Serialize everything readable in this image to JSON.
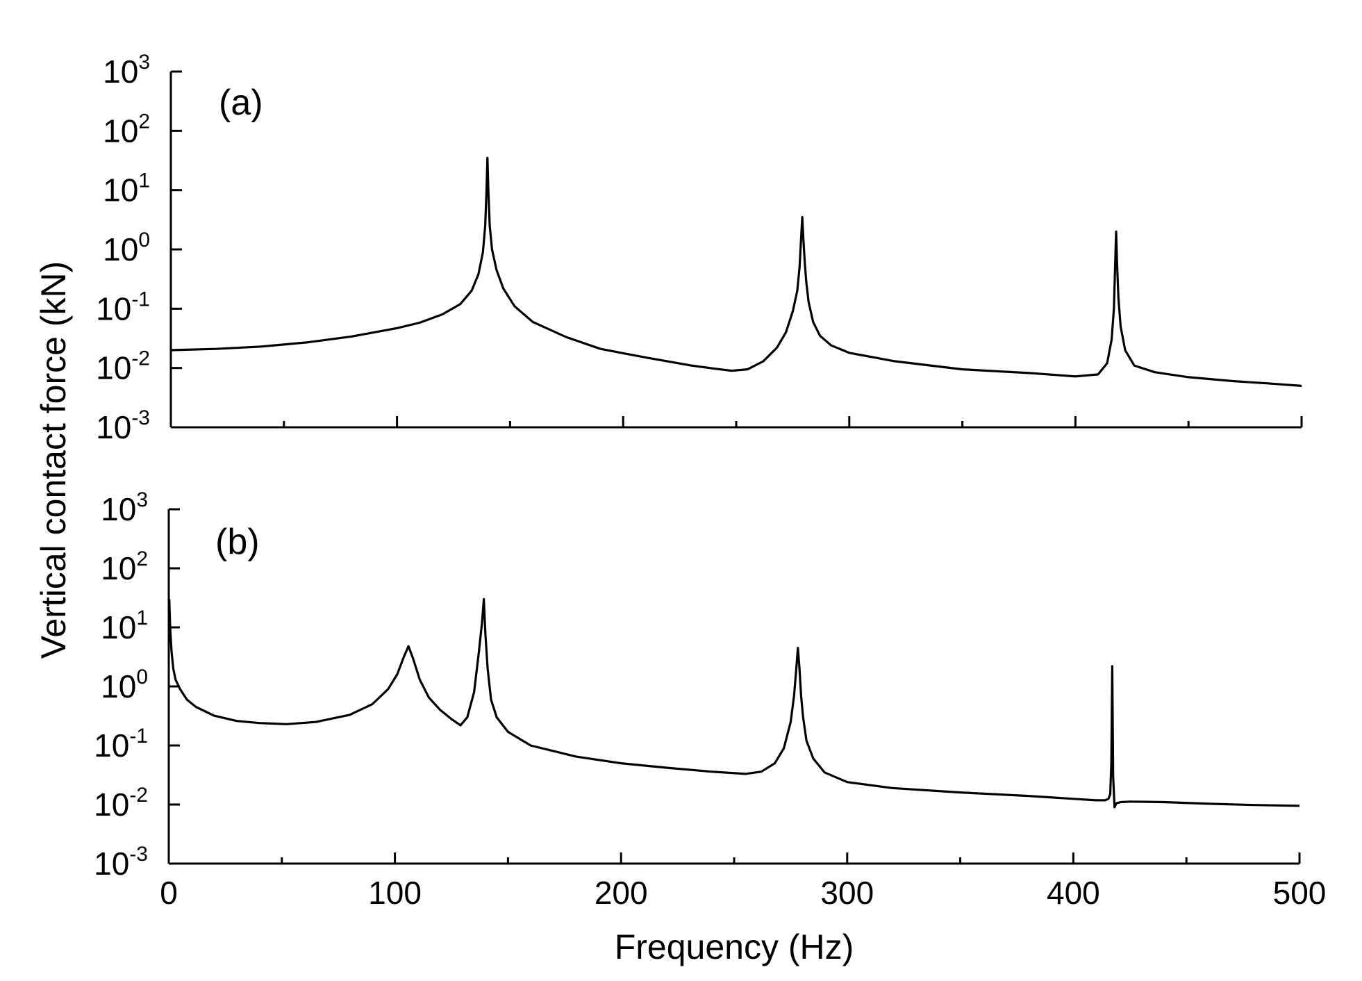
{
  "chart_data": [
    {
      "type": "line",
      "panel_label": "(a)",
      "xlim": [
        0,
        500
      ],
      "ylim": [
        0.001,
        1000
      ],
      "y_scale": "log",
      "grid": false,
      "legend": "none",
      "x_ticks": [
        0,
        100,
        200,
        300,
        400,
        500
      ],
      "x_tick_labels_shown": false,
      "y_ticks": [
        {
          "base": "10",
          "exp": "3",
          "value": 1000
        },
        {
          "base": "10",
          "exp": "2",
          "value": 100
        },
        {
          "base": "10",
          "exp": "1",
          "value": 10
        },
        {
          "base": "10",
          "exp": "0",
          "value": 1
        },
        {
          "base": "10",
          "exp": "-1",
          "value": 0.1
        },
        {
          "base": "10",
          "exp": "-2",
          "value": 0.01
        },
        {
          "base": "10",
          "exp": "-3",
          "value": 0.001
        }
      ],
      "series": [
        {
          "color": "#000000",
          "x": [
            0,
            20,
            40,
            60,
            80,
            100,
            110,
            120,
            128,
            133,
            136,
            138,
            139,
            139.6,
            140,
            140.4,
            141,
            142,
            144,
            147,
            152,
            160,
            175,
            190,
            210,
            230,
            240,
            248,
            255,
            262,
            268,
            272,
            275,
            277,
            278,
            278.7,
            279.2,
            279.7,
            280.3,
            281,
            282,
            284,
            287,
            292,
            300,
            320,
            350,
            380,
            400,
            410,
            414,
            416,
            417,
            417.6,
            418,
            418.4,
            419,
            420,
            422,
            426,
            435,
            450,
            470,
            485,
            500
          ],
          "y": [
            0.02,
            0.021,
            0.023,
            0.027,
            0.034,
            0.047,
            0.058,
            0.08,
            0.12,
            0.2,
            0.38,
            0.9,
            2.5,
            10,
            35,
            10,
            2.5,
            1.0,
            0.45,
            0.22,
            0.11,
            0.06,
            0.033,
            0.021,
            0.015,
            0.011,
            0.0098,
            0.009,
            0.0095,
            0.013,
            0.022,
            0.04,
            0.09,
            0.2,
            0.5,
            1.5,
            3.5,
            1.5,
            0.6,
            0.28,
            0.13,
            0.06,
            0.035,
            0.024,
            0.018,
            0.013,
            0.0095,
            0.0082,
            0.0072,
            0.0078,
            0.012,
            0.03,
            0.1,
            0.6,
            2.0,
            0.6,
            0.15,
            0.05,
            0.02,
            0.011,
            0.0085,
            0.007,
            0.006,
            0.0055,
            0.005
          ]
        }
      ]
    },
    {
      "type": "line",
      "panel_label": "(b)",
      "xlim": [
        0,
        500
      ],
      "ylim": [
        0.001,
        1000
      ],
      "y_scale": "log",
      "grid": false,
      "legend": "none",
      "xlabel": "Frequency (Hz)",
      "x_ticks": [
        0,
        100,
        200,
        300,
        400,
        500
      ],
      "x_tick_labels": [
        "0",
        "100",
        "200",
        "300",
        "400",
        "500"
      ],
      "y_ticks": [
        {
          "base": "10",
          "exp": "3",
          "value": 1000
        },
        {
          "base": "10",
          "exp": "2",
          "value": 100
        },
        {
          "base": "10",
          "exp": "1",
          "value": 10
        },
        {
          "base": "10",
          "exp": "0",
          "value": 1
        },
        {
          "base": "10",
          "exp": "-1",
          "value": 0.1
        },
        {
          "base": "10",
          "exp": "-2",
          "value": 0.01
        },
        {
          "base": "10",
          "exp": "-3",
          "value": 0.001
        }
      ],
      "series": [
        {
          "color": "#000000",
          "x": [
            0.2,
            0.6,
            1.2,
            2,
            3,
            5,
            8,
            12,
            20,
            30,
            40,
            52,
            65,
            80,
            90,
            97,
            101,
            104,
            106,
            108,
            111,
            115,
            120,
            125,
            129,
            132,
            135,
            137,
            138.5,
            139.3,
            140,
            141,
            142.5,
            145,
            150,
            160,
            180,
            200,
            220,
            240,
            255,
            262,
            268,
            272,
            275,
            276.5,
            277.5,
            278.2,
            278.9,
            279.6,
            280.5,
            282,
            285,
            290,
            300,
            320,
            350,
            380,
            400,
            410,
            414,
            415.5,
            416.3,
            416.8,
            417.2,
            417.6,
            418.2,
            419,
            421,
            425,
            440,
            460,
            480,
            500
          ],
          "y": [
            30,
            10,
            4,
            2,
            1.3,
            0.9,
            0.6,
            0.45,
            0.32,
            0.26,
            0.24,
            0.23,
            0.25,
            0.33,
            0.5,
            0.9,
            1.6,
            3.2,
            4.8,
            3.0,
            1.3,
            0.65,
            0.4,
            0.28,
            0.22,
            0.3,
            0.8,
            3.5,
            12,
            30,
            8,
            2,
            0.6,
            0.3,
            0.17,
            0.1,
            0.065,
            0.05,
            0.042,
            0.036,
            0.033,
            0.036,
            0.05,
            0.09,
            0.25,
            0.7,
            2,
            4.5,
            2,
            0.7,
            0.3,
            0.12,
            0.06,
            0.035,
            0.024,
            0.019,
            0.016,
            0.014,
            0.0125,
            0.0118,
            0.0118,
            0.0125,
            0.015,
            0.05,
            2.2,
            0.03,
            0.009,
            0.0105,
            0.011,
            0.0112,
            0.011,
            0.0103,
            0.0098,
            0.0095
          ]
        }
      ]
    }
  ],
  "ylabel": "Vertical contact force (kN)"
}
